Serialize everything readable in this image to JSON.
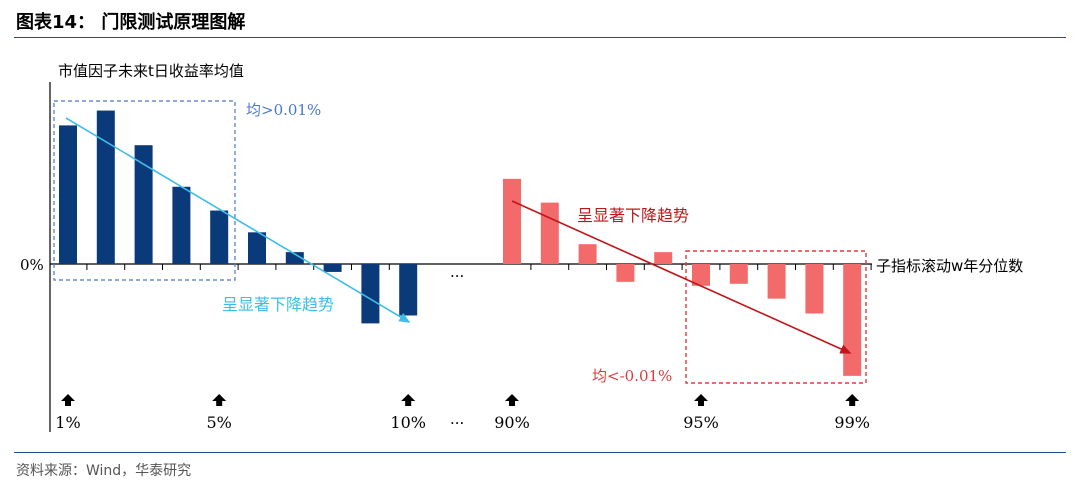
{
  "figure": {
    "title": "图表14：  门限测试原理图解",
    "source": "资料来源：Wind，华泰研究"
  },
  "chart_data": {
    "type": "bar",
    "ylabel": "市值因子未来t日收益率均值",
    "xlabel": "子指标滚动w年分位数",
    "zero_label": "0%",
    "ellipsis": "···",
    "ylim": [
      -115,
      165
    ],
    "series": [
      {
        "color": "#0b3a7a",
        "values": [
          140,
          155,
          120,
          78,
          54,
          32,
          12,
          -8,
          -60,
          -52
        ]
      },
      {
        "color": "#f26a6a",
        "values": [
          86,
          62,
          20,
          -18,
          12,
          -22,
          -20,
          -35,
          -50,
          -113
        ]
      }
    ],
    "tick_labels": [
      {
        "text": "1%",
        "series": 0,
        "index": 0
      },
      {
        "text": "5%",
        "series": 0,
        "index": 4
      },
      {
        "text": "10%",
        "series": 0,
        "index": 9
      },
      {
        "text": "90%",
        "series": 1,
        "index": 0
      },
      {
        "text": "95%",
        "series": 1,
        "index": 5
      },
      {
        "text": "99%",
        "series": 1,
        "index": 9
      }
    ],
    "annotations": {
      "blue_box_label": "均>0.01%",
      "red_box_label": "均<-0.01%",
      "blue_trend_label": "呈显著下降趋势",
      "red_trend_label": "呈显著下降趋势"
    },
    "colors": {
      "blue_bar": "#0b3a7a",
      "red_bar": "#f26a6a",
      "blue_trend": "#3fbde8",
      "red_trend": "#c0161b",
      "blue_box": "#4a78c8",
      "red_box": "#e23a3a",
      "axis": "#000000"
    },
    "grid": false
  }
}
